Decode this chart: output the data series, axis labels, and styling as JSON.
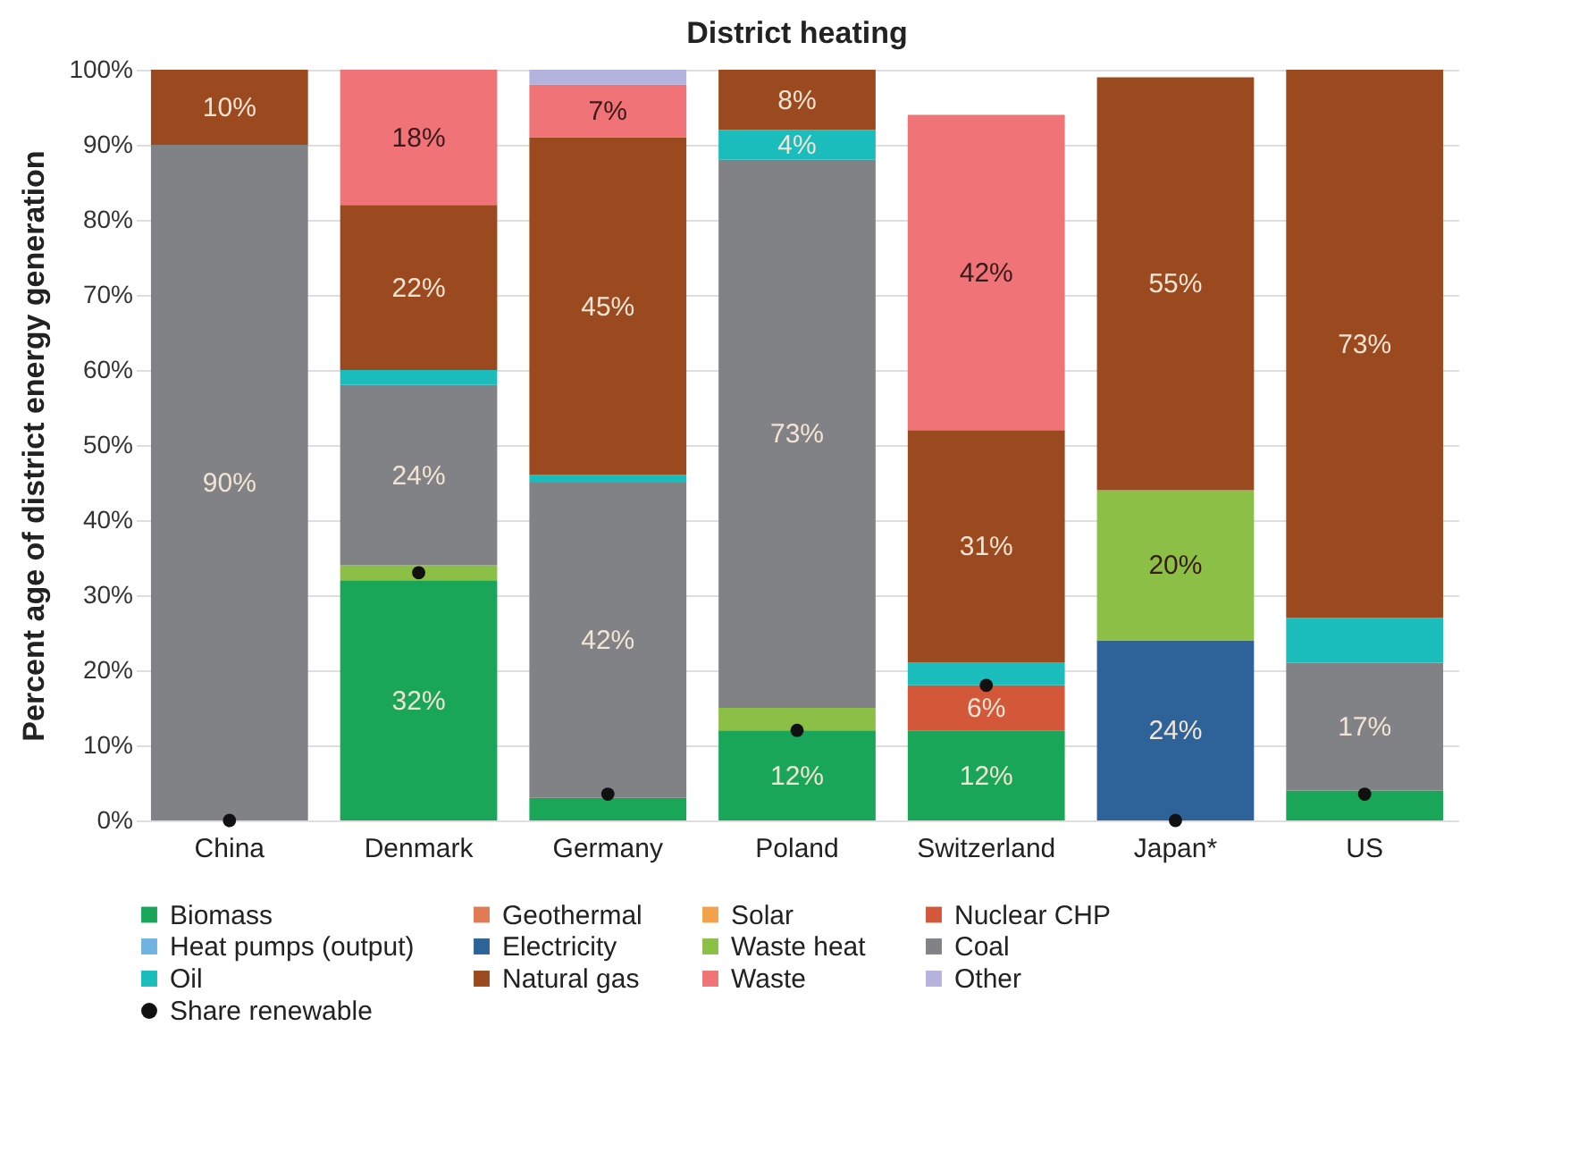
{
  "chart_data": {
    "type": "bar",
    "title": "District heating",
    "ylabel": "Percent age of district energy generation",
    "categories": [
      "China",
      "Denmark",
      "Germany",
      "Poland",
      "Switzerland",
      "Japan*",
      "US"
    ],
    "stacked": true,
    "ylim": [
      0,
      100
    ],
    "yticks": [
      {
        "value": 0,
        "label": "0%"
      },
      {
        "value": 10,
        "label": "10%"
      },
      {
        "value": 20,
        "label": "20%"
      },
      {
        "value": 30,
        "label": "30%"
      },
      {
        "value": 40,
        "label": "40%"
      },
      {
        "value": 50,
        "label": "50%"
      },
      {
        "value": 60,
        "label": "60%"
      },
      {
        "value": 70,
        "label": "70%"
      },
      {
        "value": 80,
        "label": "80%"
      },
      {
        "value": 90,
        "label": "90%"
      },
      {
        "value": 100,
        "label": "100%"
      }
    ],
    "grid": "y",
    "legend": "bottom",
    "series": [
      {
        "name": "Biomass",
        "color": "#1aa659",
        "values": [
          null,
          32,
          3,
          12,
          12,
          null,
          4
        ],
        "value_labels": [
          null,
          "32%",
          null,
          "12%",
          "12%",
          null,
          null
        ]
      },
      {
        "name": "Geothermal",
        "color": "#e07b54",
        "values": [
          null,
          null,
          null,
          null,
          null,
          null,
          null
        ]
      },
      {
        "name": "Solar",
        "color": "#f2a34a",
        "values": [
          null,
          null,
          null,
          null,
          null,
          null,
          null
        ]
      },
      {
        "name": "Nuclear CHP",
        "color": "#d3583a",
        "values": [
          null,
          null,
          null,
          null,
          6,
          null,
          null
        ],
        "value_labels": [
          null,
          null,
          null,
          null,
          "6%",
          null,
          null
        ]
      },
      {
        "name": "Heat pumps (output)",
        "color": "#6fb3e0",
        "values": [
          null,
          null,
          null,
          null,
          null,
          null,
          null
        ]
      },
      {
        "name": "Electricity",
        "color": "#2e6399",
        "values": [
          null,
          null,
          null,
          null,
          null,
          24,
          null
        ],
        "value_labels": [
          null,
          null,
          null,
          null,
          null,
          "24%",
          null
        ]
      },
      {
        "name": "Waste heat",
        "color": "#8cbf45",
        "values": [
          null,
          2,
          null,
          3,
          null,
          20,
          null
        ],
        "value_labels": [
          null,
          null,
          null,
          null,
          null,
          "20%",
          null
        ]
      },
      {
        "name": "Coal",
        "color": "#808285",
        "values": [
          90,
          24,
          42,
          73,
          null,
          null,
          17
        ],
        "value_labels": [
          "90%",
          "24%",
          "42%",
          "73%",
          null,
          null,
          "17%"
        ]
      },
      {
        "name": "Oil",
        "color": "#1bbcbc",
        "values": [
          null,
          2,
          1,
          4,
          3,
          null,
          6
        ],
        "value_labels": [
          null,
          null,
          null,
          "4%",
          null,
          null,
          null
        ]
      },
      {
        "name": "Natural gas",
        "color": "#9a4a1e",
        "values": [
          10,
          22,
          45,
          8,
          31,
          55,
          73
        ],
        "value_labels": [
          "10%",
          "22%",
          "45%",
          "8%",
          "31%",
          "55%",
          "73%"
        ]
      },
      {
        "name": "Waste",
        "color": "#ef7377",
        "values": [
          null,
          18,
          7,
          null,
          42,
          null,
          null
        ],
        "value_labels": [
          null,
          "18%",
          "7%",
          null,
          "42%",
          null,
          null
        ]
      },
      {
        "name": "Other",
        "color": "#b3b3dd",
        "values": [
          null,
          null,
          2,
          null,
          null,
          null,
          null
        ]
      },
      {
        "name": "Share renewable",
        "type": "scatter",
        "marker": "circle",
        "color": "#111111",
        "values": [
          0,
          33,
          3.5,
          12,
          18,
          0,
          3.5
        ]
      }
    ]
  }
}
